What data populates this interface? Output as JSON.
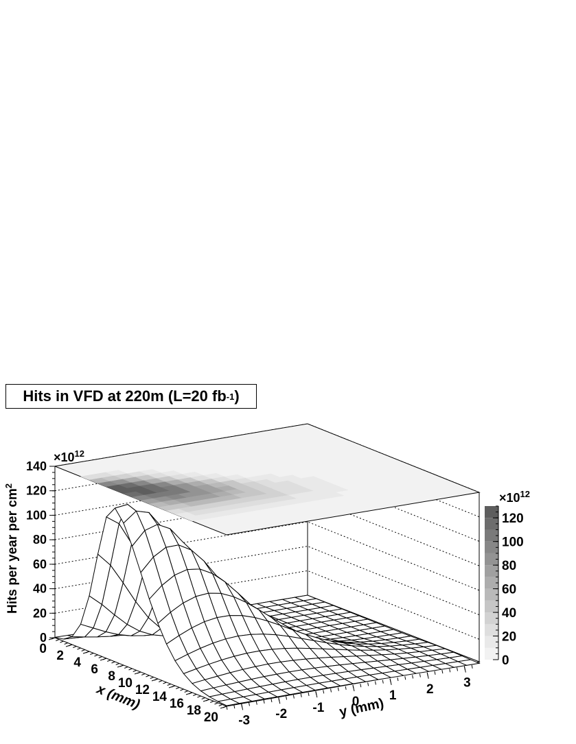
{
  "chart_data": {
    "type": "surface",
    "title_main": "Hits in VFD at 220m (L=20 fb",
    "title_sup": "-1",
    "title_end": ")",
    "xlabel": "x (mm)",
    "ylabel": "y (mm)",
    "zlabel": "Hits per year per cm",
    "zlabel_sup": "2",
    "z_multiplier": "×10",
    "z_multiplier_exp": "12",
    "x_ticks": [
      "0",
      "2",
      "4",
      "6",
      "8",
      "10",
      "12",
      "14",
      "16",
      "18",
      "20"
    ],
    "y_ticks": [
      "-3",
      "-2",
      "-1",
      "0",
      "1",
      "2",
      "3"
    ],
    "z_ticks": [
      "0",
      "20",
      "40",
      "60",
      "80",
      "100",
      "120",
      "140"
    ],
    "xlim": [
      0,
      20
    ],
    "ylim": [
      -3.4,
      3.4
    ],
    "zlim": [
      0,
      140
    ],
    "peak": {
      "x": 7,
      "y": -3.2,
      "z": 128
    },
    "grid_size": {
      "nx": 20,
      "ny": 20
    },
    "colorbar": {
      "ticks": [
        "0",
        "20",
        "40",
        "60",
        "80",
        "100",
        "120"
      ],
      "multiplier": "×10",
      "multiplier_exp": "12",
      "levels": [
        0,
        10,
        20,
        30,
        40,
        50,
        60,
        70,
        80,
        90,
        100,
        110,
        120,
        130
      ],
      "colors": [
        "#f2f2f2",
        "#e9e9e9",
        "#dedede",
        "#d2d2d2",
        "#c6c6c6",
        "#b9b9b9",
        "#adadad",
        "#a0a0a0",
        "#939393",
        "#878787",
        "#7a7a7a",
        "#6d6d6d",
        "#5e5e5e",
        "#4e4e4e"
      ]
    },
    "grid": true
  }
}
